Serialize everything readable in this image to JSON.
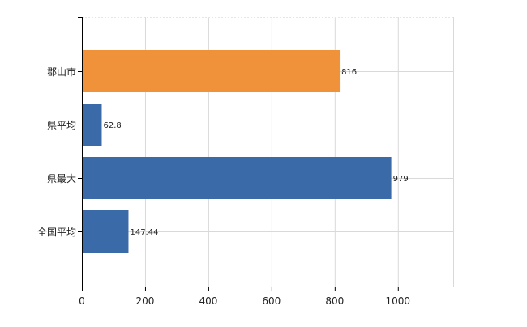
{
  "chart_data": {
    "type": "bar",
    "orientation": "horizontal",
    "categories": [
      "郡山市",
      "県平均",
      "県最大",
      "全国平均"
    ],
    "values": [
      816,
      62.8,
      979,
      147.44
    ],
    "value_labels": [
      "816",
      "62.8",
      "979",
      "147.44"
    ],
    "bar_colors": [
      "#f0923a",
      "#3b6aa8",
      "#3b6aa8",
      "#3b6aa8"
    ],
    "xlim": [
      0,
      1175
    ],
    "xticks": [
      0,
      200,
      400,
      600,
      800,
      1000
    ],
    "xtick_labels": [
      "0",
      "200",
      "400",
      "600",
      "800",
      "1000"
    ],
    "grid": true,
    "title": "",
    "xlabel": "",
    "ylabel": ""
  }
}
